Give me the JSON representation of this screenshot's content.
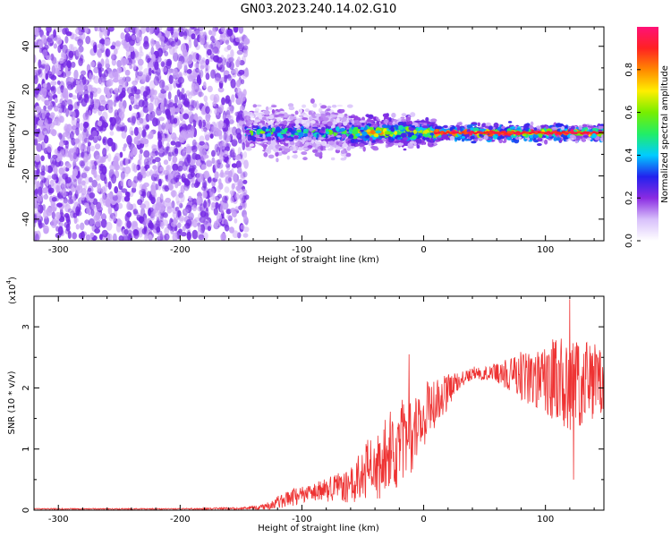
{
  "title": "GN03.2023.240.14.02.G10",
  "colors": {
    "snr_line": "#ee3333",
    "scatter_purple": "#7a1cf0",
    "scatter_light": "#caa8f6",
    "colorbar_stops": [
      "#ffffff",
      "#d8c0fb",
      "#8a2be2",
      "#2222ee",
      "#00ccff",
      "#22ee66",
      "#77ee00",
      "#ffee00",
      "#ff8800",
      "#ff2222",
      "#ff1177"
    ]
  },
  "chart_data": [
    {
      "type": "heatmap",
      "xlabel": "Height of straight line (km)",
      "ylabel": "Frequency (Hz)",
      "xlim": [
        -320,
        148
      ],
      "ylim": [
        -50,
        49
      ],
      "xticks": [
        -300,
        -200,
        -100,
        0,
        100
      ],
      "yticks": [
        -40,
        -20,
        0,
        20,
        40
      ],
      "colorbar": {
        "label": "Normalized spectral amplitude",
        "range": [
          0,
          1
        ],
        "ticks": [
          "0.0",
          "0.2",
          "0.4",
          "0.6",
          "0.8"
        ],
        "tick_values": [
          0.0,
          0.2,
          0.4,
          0.6,
          0.8
        ]
      },
      "regions": [
        {
          "x": [
            -320,
            -145
          ],
          "freq_spread": [
            -49,
            49
          ],
          "amplitude": [
            0.05,
            0.2
          ],
          "description": "noise"
        },
        {
          "x": [
            -145,
            -60
          ],
          "freq_spread": [
            -8,
            10
          ],
          "amplitude": [
            0.1,
            0.45
          ]
        },
        {
          "x": [
            -60,
            10
          ],
          "freq_spread": [
            -5,
            6
          ],
          "amplitude": [
            0.2,
            0.6
          ]
        },
        {
          "x": [
            10,
            148
          ],
          "freq_spread": [
            -3,
            3
          ],
          "amplitude": [
            0.2,
            0.95
          ]
        }
      ]
    },
    {
      "type": "line",
      "xlabel": "Height of straight line (km)",
      "ylabel": "SNR (10 * v/v)",
      "yscale_label": "(x10",
      "yscale_exp": "4",
      "yscale_close": ")",
      "xlim": [
        -320,
        148
      ],
      "ylim": [
        0,
        3.5
      ],
      "xticks": [
        -300,
        -200,
        -100,
        0,
        100
      ],
      "yticks": [
        0,
        1,
        2,
        3
      ],
      "envelope": {
        "x": [
          -320,
          -200,
          -150,
          -130,
          -110,
          -90,
          -60,
          -40,
          -25,
          -10,
          0,
          10,
          20,
          30,
          40,
          60,
          80,
          100,
          120,
          148
        ],
        "mean": [
          0.02,
          0.02,
          0.03,
          0.06,
          0.2,
          0.3,
          0.4,
          0.75,
          1.0,
          1.3,
          1.55,
          1.75,
          1.95,
          2.1,
          2.25,
          2.25,
          2.2,
          2.15,
          2.1,
          2.1
        ],
        "amp": [
          0.01,
          0.01,
          0.02,
          0.05,
          0.15,
          0.15,
          0.3,
          0.6,
          0.7,
          0.7,
          0.5,
          0.45,
          0.3,
          0.15,
          0.1,
          0.15,
          0.4,
          0.6,
          0.8,
          0.6
        ]
      },
      "peaks": [
        {
          "x": -12,
          "y": 2.55
        },
        {
          "x": 120,
          "y": 3.45
        },
        {
          "x": 123,
          "y": 0.5
        }
      ]
    }
  ]
}
